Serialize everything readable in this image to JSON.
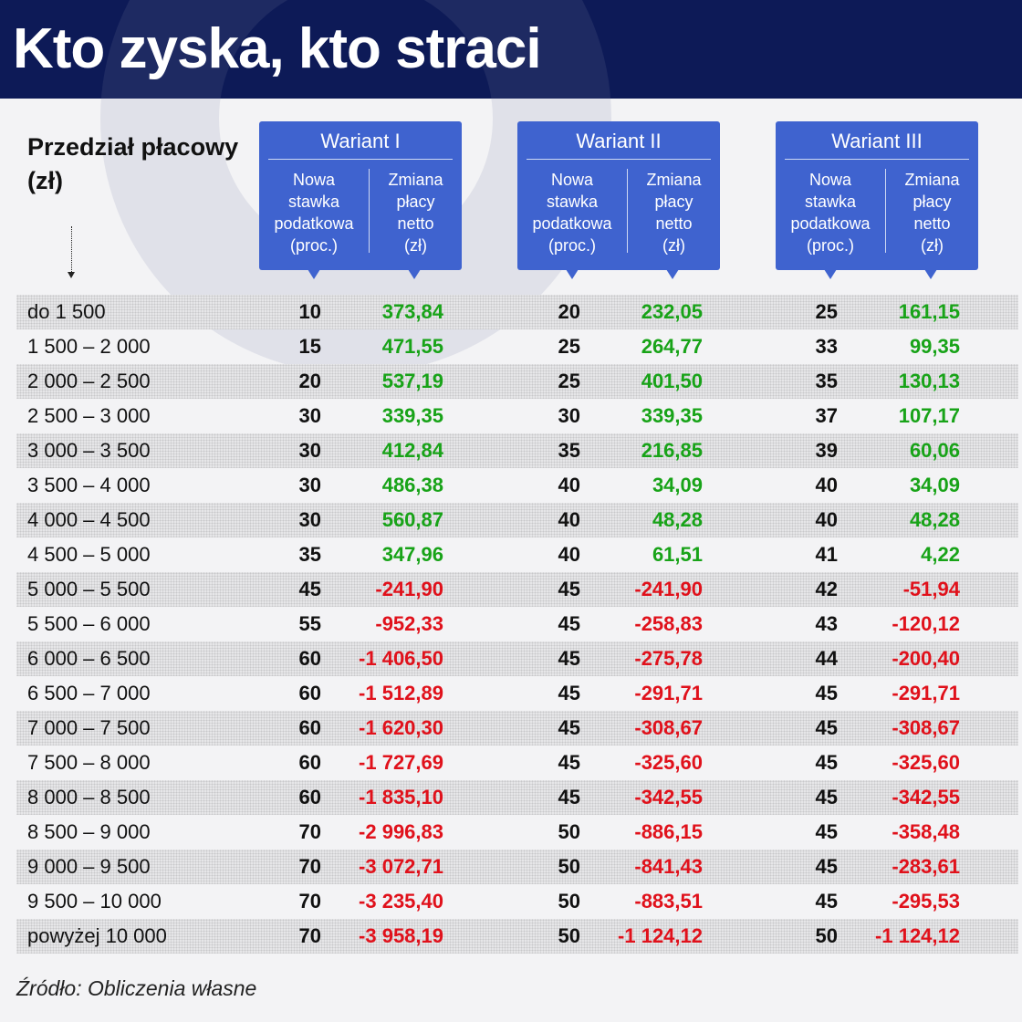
{
  "title": "Kto zyska, kto straci",
  "range_header": "Przedział płacowy (zł)",
  "variants": [
    {
      "name": "Wariant I",
      "col_rate": "Nowa\nstawka\npodatkowa\n(proc.)",
      "col_change": "Zmiana\npłacy\nnetto\n(zł)"
    },
    {
      "name": "Wariant II",
      "col_rate": "Nowa\nstawka\npodatkowa\n(proc.)",
      "col_change": "Zmiana\npłacy\nnetto\n(zł)"
    },
    {
      "name": "Wariant III",
      "col_rate": "Nowa\nstawka\npodatkowa\n(proc.)",
      "col_change": "Zmiana\npłacy\nnetto\n(zł)"
    }
  ],
  "rows": [
    {
      "range": "do 1 500",
      "r1": "10",
      "v1": "373,84",
      "r2": "20",
      "v2": "232,05",
      "r3": "25",
      "v3": "161,15"
    },
    {
      "range": "1 500 – 2 000",
      "r1": "15",
      "v1": "471,55",
      "r2": "25",
      "v2": "264,77",
      "r3": "33",
      "v3": "99,35"
    },
    {
      "range": "2 000 – 2 500",
      "r1": "20",
      "v1": "537,19",
      "r2": "25",
      "v2": "401,50",
      "r3": "35",
      "v3": "130,13"
    },
    {
      "range": "2 500 – 3 000",
      "r1": "30",
      "v1": "339,35",
      "r2": "30",
      "v2": "339,35",
      "r3": "37",
      "v3": "107,17"
    },
    {
      "range": "3 000 – 3 500",
      "r1": "30",
      "v1": "412,84",
      "r2": "35",
      "v2": "216,85",
      "r3": "39",
      "v3": "60,06"
    },
    {
      "range": "3 500 – 4 000",
      "r1": "30",
      "v1": "486,38",
      "r2": "40",
      "v2": "34,09",
      "r3": "40",
      "v3": "34,09"
    },
    {
      "range": "4 000 – 4 500",
      "r1": "30",
      "v1": "560,87",
      "r2": "40",
      "v2": "48,28",
      "r3": "40",
      "v3": "48,28"
    },
    {
      "range": "4 500 – 5 000",
      "r1": "35",
      "v1": "347,96",
      "r2": "40",
      "v2": "61,51",
      "r3": "41",
      "v3": "4,22"
    },
    {
      "range": "5 000 – 5 500",
      "r1": "45",
      "v1": "-241,90",
      "r2": "45",
      "v2": "-241,90",
      "r3": "42",
      "v3": "-51,94"
    },
    {
      "range": "5 500 – 6 000",
      "r1": "55",
      "v1": "-952,33",
      "r2": "45",
      "v2": "-258,83",
      "r3": "43",
      "v3": "-120,12"
    },
    {
      "range": "6 000 – 6 500",
      "r1": "60",
      "v1": "-1 406,50",
      "r2": "45",
      "v2": "-275,78",
      "r3": "44",
      "v3": "-200,40"
    },
    {
      "range": "6 500 – 7 000",
      "r1": "60",
      "v1": "-1 512,89",
      "r2": "45",
      "v2": "-291,71",
      "r3": "45",
      "v3": "-291,71"
    },
    {
      "range": "7 000 – 7 500",
      "r1": "60",
      "v1": "-1 620,30",
      "r2": "45",
      "v2": "-308,67",
      "r3": "45",
      "v3": "-308,67"
    },
    {
      "range": "7 500 – 8 000",
      "r1": "60",
      "v1": "-1 727,69",
      "r2": "45",
      "v2": "-325,60",
      "r3": "45",
      "v3": "-325,60"
    },
    {
      "range": "8 000 – 8 500",
      "r1": "60",
      "v1": "-1 835,10",
      "r2": "45",
      "v2": "-342,55",
      "r3": "45",
      "v3": "-342,55"
    },
    {
      "range": "8 500 – 9 000",
      "r1": "70",
      "v1": "-2 996,83",
      "r2": "50",
      "v2": "-886,15",
      "r3": "45",
      "v3": "-358,48"
    },
    {
      "range": "9 000 – 9 500",
      "r1": "70",
      "v1": "-3 072,71",
      "r2": "50",
      "v2": "-841,43",
      "r3": "45",
      "v3": "-283,61"
    },
    {
      "range": "9 500 – 10 000",
      "r1": "70",
      "v1": "-3 235,40",
      "r2": "50",
      "v2": "-883,51",
      "r3": "45",
      "v3": "-295,53"
    },
    {
      "range": "powyżej 10 000",
      "r1": "70",
      "v1": "-3 958,19",
      "r2": "50",
      "v2": "-1 124,12",
      "r3": "50",
      "v3": "-1 124,12"
    }
  ],
  "source": "Źródło: Obliczenia własne",
  "colors": {
    "header_bg": "#0d1a57",
    "variant_box": "#3f63cf",
    "positive": "#18a318",
    "negative": "#e0111b"
  }
}
